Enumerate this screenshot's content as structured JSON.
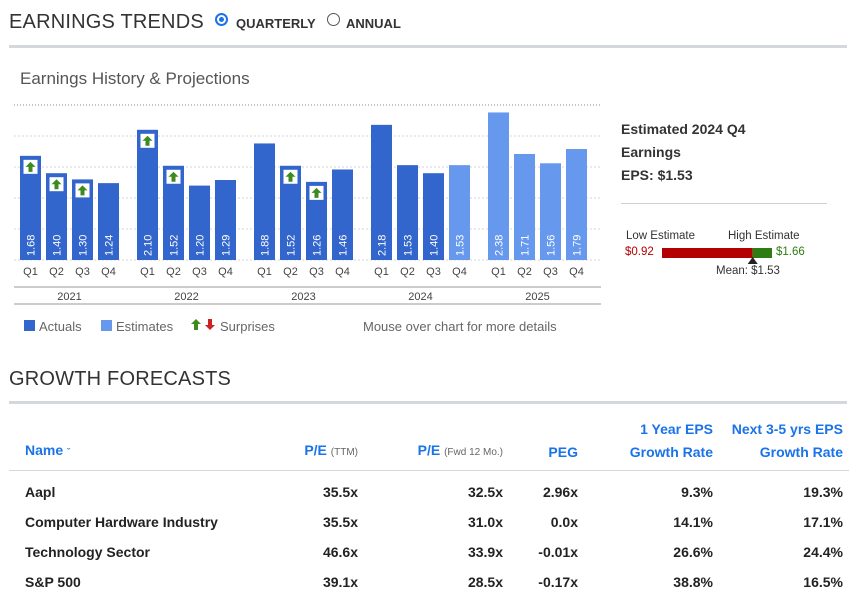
{
  "earnings_trends": {
    "title": "EARNINGS TRENDS",
    "options": [
      {
        "label": "QUARTERLY",
        "selected": true
      },
      {
        "label": "ANNUAL",
        "selected": false
      }
    ]
  },
  "chart_title": "Earnings History & Projections",
  "chart_data": {
    "type": "bar",
    "title": "Earnings History & Projections",
    "years": [
      "2021",
      "2022",
      "2023",
      "2024",
      "2025"
    ],
    "quarter_labels": [
      "Q1",
      "Q2",
      "Q3",
      "Q4"
    ],
    "bars": [
      {
        "year": "2021",
        "quarter": "Q1",
        "value": 1.68,
        "label": "1.68",
        "kind": "actual",
        "surprise": "up"
      },
      {
        "year": "2021",
        "quarter": "Q2",
        "value": 1.4,
        "label": "1.40",
        "kind": "actual",
        "surprise": "up"
      },
      {
        "year": "2021",
        "quarter": "Q3",
        "value": 1.3,
        "label": "1.30",
        "kind": "actual",
        "surprise": "up"
      },
      {
        "year": "2021",
        "quarter": "Q4",
        "value": 1.24,
        "label": "1.24",
        "kind": "actual",
        "surprise": null
      },
      {
        "year": "2022",
        "quarter": "Q1",
        "value": 2.1,
        "label": "2.10",
        "kind": "actual",
        "surprise": "up"
      },
      {
        "year": "2022",
        "quarter": "Q2",
        "value": 1.52,
        "label": "1.52",
        "kind": "actual",
        "surprise": "up"
      },
      {
        "year": "2022",
        "quarter": "Q3",
        "value": 1.2,
        "label": "1.20",
        "kind": "actual",
        "surprise": null
      },
      {
        "year": "2022",
        "quarter": "Q4",
        "value": 1.29,
        "label": "1.29",
        "kind": "actual",
        "surprise": null
      },
      {
        "year": "2023",
        "quarter": "Q1",
        "value": 1.88,
        "label": "1.88",
        "kind": "actual",
        "surprise": null
      },
      {
        "year": "2023",
        "quarter": "Q2",
        "value": 1.52,
        "label": "1.52",
        "kind": "actual",
        "surprise": "up"
      },
      {
        "year": "2023",
        "quarter": "Q3",
        "value": 1.26,
        "label": "1.26",
        "kind": "actual",
        "surprise": "up"
      },
      {
        "year": "2023",
        "quarter": "Q4",
        "value": 1.46,
        "label": "1.46",
        "kind": "actual",
        "surprise": null
      },
      {
        "year": "2024",
        "quarter": "Q1",
        "value": 2.18,
        "label": "2.18",
        "kind": "actual",
        "surprise": null
      },
      {
        "year": "2024",
        "quarter": "Q2",
        "value": 1.53,
        "label": "1.53",
        "kind": "actual",
        "surprise": null
      },
      {
        "year": "2024",
        "quarter": "Q3",
        "value": 1.4,
        "label": "1.40",
        "kind": "actual",
        "surprise": null
      },
      {
        "year": "2024",
        "quarter": "Q4",
        "value": 1.53,
        "label": "1.53",
        "kind": "estimate",
        "surprise": null
      },
      {
        "year": "2025",
        "quarter": "Q1",
        "value": 2.38,
        "label": "2.38",
        "kind": "estimate",
        "surprise": null
      },
      {
        "year": "2025",
        "quarter": "Q2",
        "value": 1.71,
        "label": "1.71",
        "kind": "estimate",
        "surprise": null
      },
      {
        "year": "2025",
        "quarter": "Q3",
        "value": 1.56,
        "label": "1.56",
        "kind": "estimate",
        "surprise": null
      },
      {
        "year": "2025",
        "quarter": "Q4",
        "value": 1.79,
        "label": "1.79",
        "kind": "estimate",
        "surprise": null
      }
    ],
    "ylim": [
      0,
      2.5
    ],
    "colors": {
      "actual": "#3366cc",
      "estimate": "#6699ee",
      "up": "#3d8b1f",
      "down": "#cc2222"
    },
    "legend": [
      "Actuals",
      "Estimates",
      "Surprises"
    ]
  },
  "legend": {
    "actuals": "Actuals",
    "estimates": "Estimates",
    "surprises": "Surprises"
  },
  "hint": "Mouse over chart for more details",
  "estimate_panel": {
    "line1": "Estimated 2024 Q4",
    "line2": "Earnings",
    "line3": "EPS: $1.53",
    "low_label": "Low Estimate",
    "high_label": "High Estimate",
    "low_value": "$0.92",
    "high_value": "$1.66",
    "mean_label": "Mean: $1.53",
    "low": 0.92,
    "high": 1.66,
    "mean": 1.53,
    "colors": {
      "low": "#b30000",
      "high": "#2d7d12"
    }
  },
  "growth": {
    "title": "GROWTH FORECASTS",
    "headers": {
      "name": "Name",
      "pe_ttm": "P/E",
      "pe_ttm_sub": "(TTM)",
      "pe_fwd": "P/E",
      "pe_fwd_sub": "(Fwd 12 Mo.)",
      "peg": "PEG",
      "eps_1y_l1": "1 Year EPS",
      "eps_1y_l2": "Growth Rate",
      "eps_35_l1": "Next 3-5 yrs EPS",
      "eps_35_l2": "Growth Rate"
    },
    "rows": [
      {
        "name": "Aapl",
        "pe_ttm": "35.5x",
        "pe_fwd": "32.5x",
        "peg": "2.96x",
        "eps_1y": "9.3%",
        "eps_35": "19.3%"
      },
      {
        "name": "Computer Hardware Industry",
        "pe_ttm": "35.5x",
        "pe_fwd": "31.0x",
        "peg": "0.0x",
        "eps_1y": "14.1%",
        "eps_35": "17.1%"
      },
      {
        "name": "Technology Sector",
        "pe_ttm": "46.6x",
        "pe_fwd": "33.9x",
        "peg": "-0.01x",
        "eps_1y": "26.6%",
        "eps_35": "24.4%"
      },
      {
        "name": "S&P 500",
        "pe_ttm": "39.1x",
        "pe_fwd": "28.5x",
        "peg": "-0.17x",
        "eps_1y": "38.8%",
        "eps_35": "16.5%"
      }
    ]
  }
}
